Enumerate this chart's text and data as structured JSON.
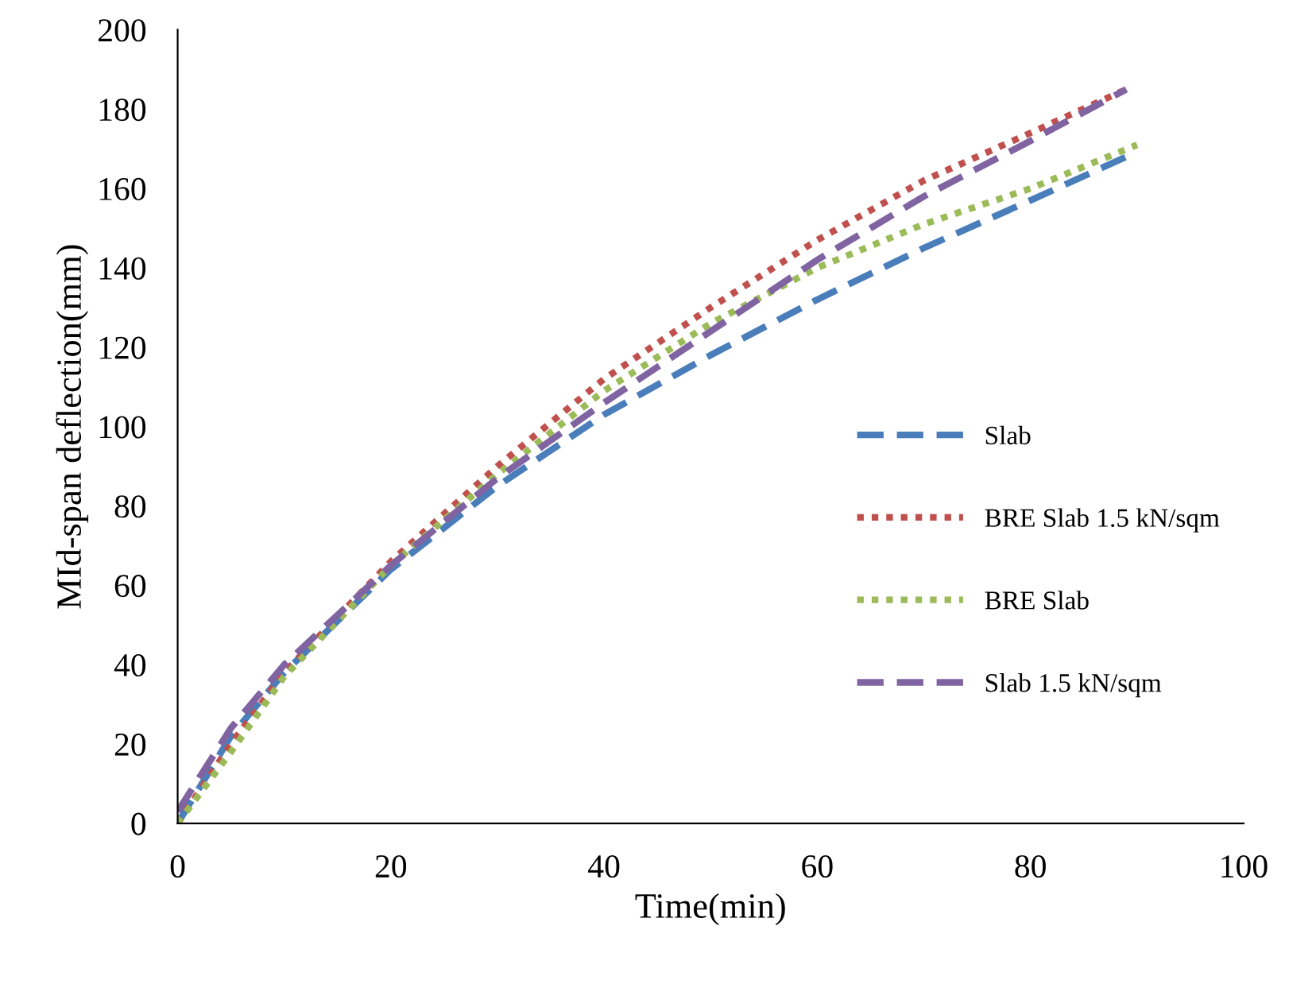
{
  "chart_data": {
    "type": "line",
    "xlabel": "Time(min)",
    "ylabel": "MId-span deflection(mm)",
    "xlim": [
      0,
      100
    ],
    "xticks": [
      0,
      20,
      40,
      60,
      80,
      100
    ],
    "ylim": [
      0,
      200
    ],
    "yticks": [
      0,
      20,
      40,
      60,
      80,
      100,
      120,
      140,
      160,
      180,
      200
    ],
    "grid": false,
    "legend": "right",
    "marker": "none",
    "series": [
      {
        "name": "Slab",
        "color": "#4a7ebb",
        "line_style": "dashed",
        "x": [
          0,
          5,
          10,
          20,
          30,
          40,
          50,
          60,
          70,
          80,
          89
        ],
        "values": [
          0,
          22,
          38,
          64,
          85,
          103,
          118,
          132,
          145,
          157,
          168
        ]
      },
      {
        "name": "BRE Slab 1.5 kN/sqm",
        "color": "#c0504d",
        "line_style": "dotted",
        "x": [
          0,
          5,
          10,
          20,
          30,
          40,
          50,
          60,
          70,
          80,
          89
        ],
        "values": [
          0,
          20,
          38,
          66,
          90,
          112,
          130,
          147,
          162,
          174,
          185
        ]
      },
      {
        "name": "BRE Slab",
        "color": "#9bbb59",
        "line_style": "dotted",
        "x": [
          0,
          5,
          10,
          20,
          30,
          40,
          50,
          60,
          70,
          80,
          90
        ],
        "values": [
          0,
          18,
          37,
          65,
          88,
          109,
          126,
          140,
          151,
          160,
          171
        ]
      },
      {
        "name": "Slab 1.5 kN/sqm",
        "color": "#8064a2",
        "line_style": "dashed",
        "x": [
          0,
          5,
          10,
          20,
          30,
          40,
          50,
          60,
          70,
          80,
          89
        ],
        "values": [
          3,
          24,
          40,
          65,
          87,
          106,
          124,
          142,
          158,
          172,
          185
        ]
      }
    ]
  }
}
